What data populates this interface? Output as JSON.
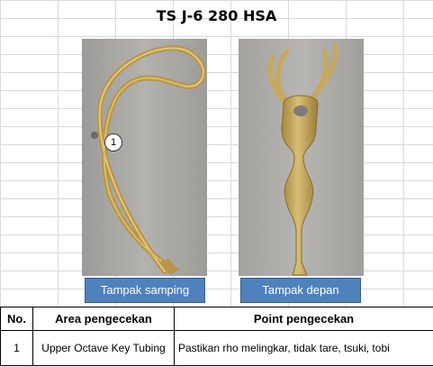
{
  "title": "TS J-6 280 HSA",
  "photos": {
    "side_caption": "Tampak samping",
    "front_caption": "Tampak depan",
    "callout_number": "1"
  },
  "table": {
    "headers": {
      "no": "No.",
      "area": "Area pengecekan",
      "point": "Point pengecekan"
    },
    "rows": [
      {
        "no": "1",
        "area": "Upper Octave Key Tubing",
        "point": "Pastikan rho melingkar, tidak tare, tsuki, tobi"
      }
    ]
  }
}
